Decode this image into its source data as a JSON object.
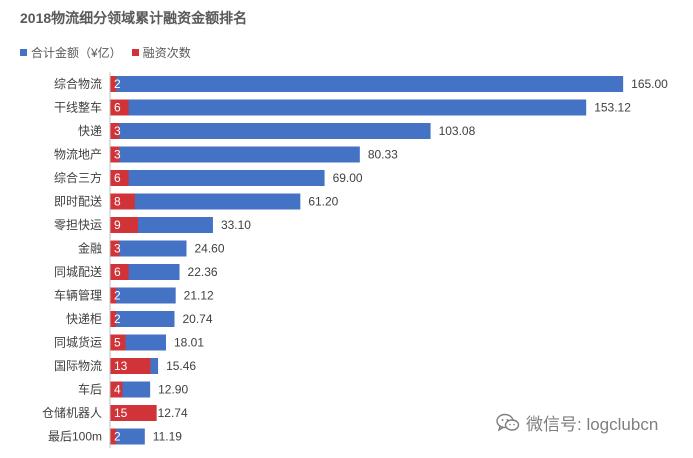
{
  "chart_data": {
    "type": "bar",
    "orientation": "horizontal",
    "stacked": true,
    "title": "2018物流细分领域累计融资金额排名",
    "legend": [
      "合计金额（¥亿）",
      "融资次数"
    ],
    "categories": [
      "综合物流",
      "干线整车",
      "快递",
      "物流地产",
      "综合三方",
      "即时配送",
      "零担快运",
      "金融",
      "同城配送",
      "车辆管理",
      "快递柜",
      "同城货运",
      "国际物流",
      "车后",
      "仓储机器人",
      "最后100m"
    ],
    "series": [
      {
        "name": "合计金额（¥亿）",
        "values": [
          165.0,
          153.12,
          103.08,
          80.33,
          69.0,
          61.2,
          33.1,
          24.6,
          22.36,
          21.12,
          20.74,
          18.01,
          15.46,
          12.9,
          12.74,
          11.19
        ]
      },
      {
        "name": "融资次数",
        "values": [
          2,
          6,
          3,
          3,
          6,
          8,
          9,
          3,
          6,
          2,
          2,
          5,
          13,
          4,
          15,
          2
        ]
      }
    ],
    "amount_labels": [
      "165.00",
      "153.12",
      "103.08",
      "80.33",
      "69.00",
      "61.20",
      "33.10",
      "24.60",
      "22.36",
      "21.12",
      "20.74",
      "18.01",
      "15.46",
      "12.90",
      "12.74",
      "11.19"
    ],
    "count_labels": [
      "2",
      "6",
      "3",
      "3",
      "6",
      "8",
      "9",
      "3",
      "6",
      "2",
      "2",
      "5",
      "13",
      "4",
      "15",
      "2"
    ],
    "xlim": [
      0,
      170
    ],
    "grid": false
  },
  "colors": {
    "amount": "#4472c4",
    "count": "#d13438",
    "text": "#404040",
    "title": "#595959",
    "axis": "#bfbfbf"
  },
  "watermark": {
    "text": "微信号: logclubcn",
    "icon": "wechat-icon"
  }
}
